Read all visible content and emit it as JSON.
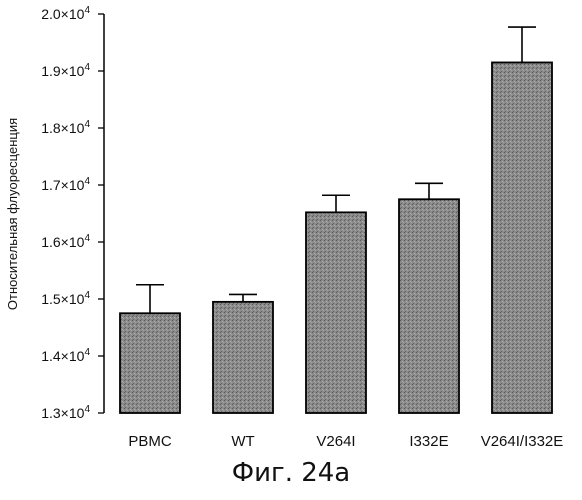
{
  "chart_data": {
    "type": "bar",
    "categories": [
      "PBMC",
      "WT",
      "V264I",
      "I332E",
      "V264I/I332E"
    ],
    "values": [
      14750,
      14950,
      16520,
      16750,
      19150
    ],
    "errors": [
      500,
      130,
      300,
      280,
      620
    ],
    "ylabel": "Относительная флуоресценция",
    "ylim": [
      13000,
      20000
    ],
    "yticks": [
      13000,
      14000,
      15000,
      16000,
      17000,
      18000,
      19000,
      20000
    ],
    "ytick_labels": [
      "1.3×10",
      "1.4×10",
      "1.5×10",
      "1.6×10",
      "1.7×10",
      "1.8×10",
      "1.9×10",
      "2.0×10"
    ],
    "ytick_exponent": "4",
    "grid": false,
    "bar_color": "#8c8c8c"
  },
  "caption": "Фиг. 24a"
}
